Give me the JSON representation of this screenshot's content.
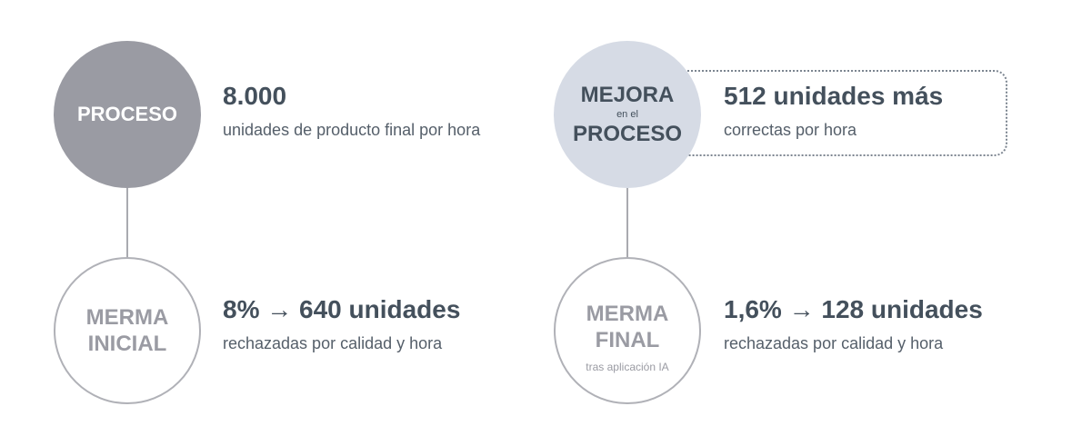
{
  "left": {
    "process_circle": {
      "label": "PROCESO"
    },
    "process_value": "8.000",
    "process_desc": "unidades de producto final por hora",
    "waste_circle": {
      "line1": "MERMA",
      "line2": "INICIAL"
    },
    "waste_value": "8% → 640 unidades",
    "waste_desc": "rechazadas por calidad y hora"
  },
  "right": {
    "improve_circle": {
      "line1": "MEJORA",
      "line2": "en el",
      "line3": "PROCESO"
    },
    "improve_value": "512 unidades más",
    "improve_desc": "correctas por hora",
    "waste_circle": {
      "line1": "MERMA",
      "line2": "FINAL",
      "note": "tras aplicación IA"
    },
    "waste_value": "1,6% → 128 unidades",
    "waste_desc": "rechazadas por calidad y hora"
  },
  "colors": {
    "dark_circle": "#9a9ba3",
    "light_circle": "#d6dbe5",
    "text": "#44505c"
  }
}
